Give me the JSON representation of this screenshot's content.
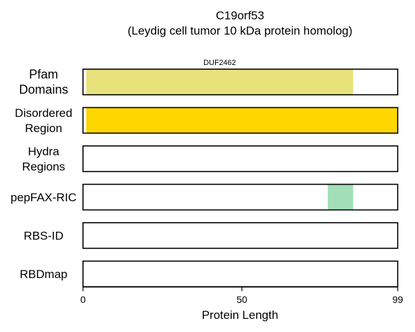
{
  "chart_data": {
    "type": "bar",
    "title_lines": [
      "C19orf53",
      "(Leydig cell tumor 10 kDa protein homolog)"
    ],
    "xlabel": "Protein Length",
    "xlim": [
      0,
      99
    ],
    "x_ticks": [
      0,
      50,
      99
    ],
    "tracks": [
      {
        "label_lines": [
          "Pfam",
          "Domains"
        ],
        "segments": [
          {
            "start": 1,
            "end": 85,
            "color": "#e8e27a",
            "label": "DUF2462"
          }
        ]
      },
      {
        "label_lines": [
          "Disordered",
          "Region"
        ],
        "segments": [
          {
            "start": 1,
            "end": 99,
            "color": "#ffd700"
          }
        ]
      },
      {
        "label_lines": [
          "Hydra",
          "Regions"
        ],
        "segments": []
      },
      {
        "label_lines": [
          "pepFAX-RIC"
        ],
        "segments": [
          {
            "start": 77,
            "end": 85,
            "color": "#a2dfb8"
          }
        ]
      },
      {
        "label_lines": [
          "RBS-ID"
        ],
        "segments": []
      },
      {
        "label_lines": [
          "RBDmap"
        ],
        "segments": []
      }
    ]
  }
}
